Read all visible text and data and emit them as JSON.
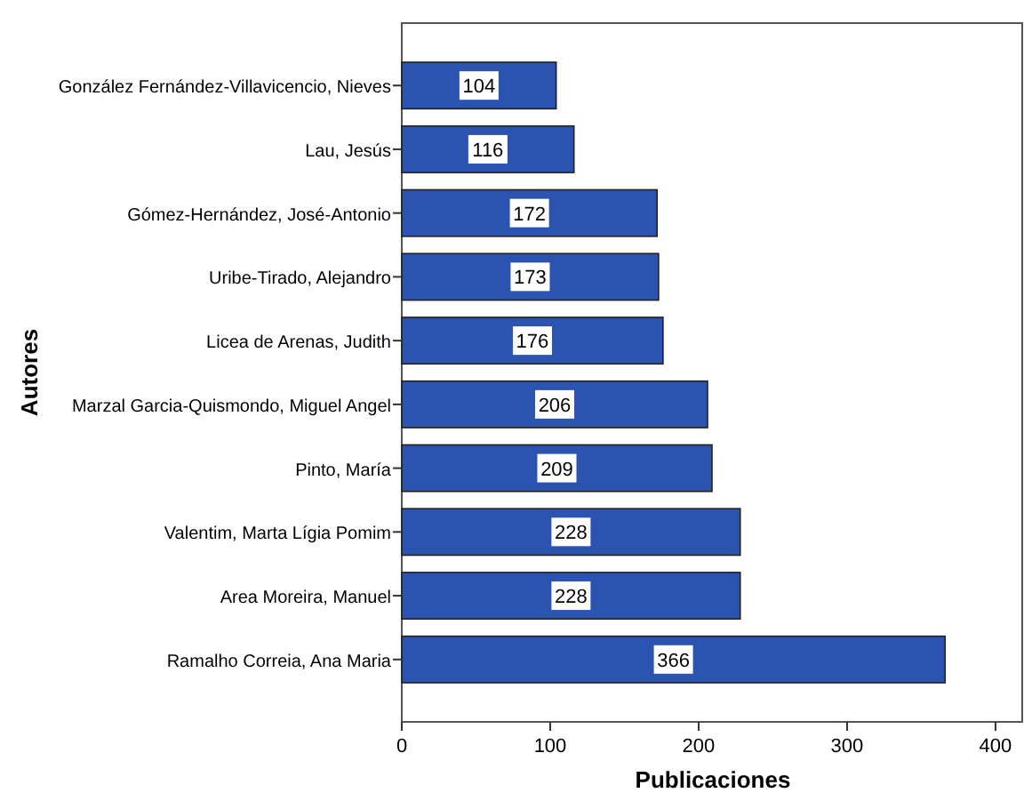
{
  "chart_data": {
    "type": "bar",
    "orientation": "horizontal",
    "xlabel": "Publicaciones",
    "ylabel": "Autores",
    "categories": [
      "González Fernández-Villavicencio, Nieves",
      "Lau, Jesús",
      "Gómez-Hernández, José-Antonio",
      "Uribe-Tirado, Alejandro",
      "Licea de Arenas, Judith",
      "Marzal Garcia-Quismondo, Miguel Angel",
      "Pinto, María",
      "Valentim, Marta Lígia Pomim",
      "Area Moreira, Manuel",
      "Ramalho Correia, Ana Maria"
    ],
    "values": [
      104,
      116,
      172,
      173,
      176,
      206,
      209,
      228,
      228,
      366
    ],
    "color": "#2b54b0",
    "data_labels": true,
    "xlim": [
      0,
      418
    ],
    "xticks": [
      0,
      100,
      200,
      300,
      400
    ],
    "grid": false
  }
}
